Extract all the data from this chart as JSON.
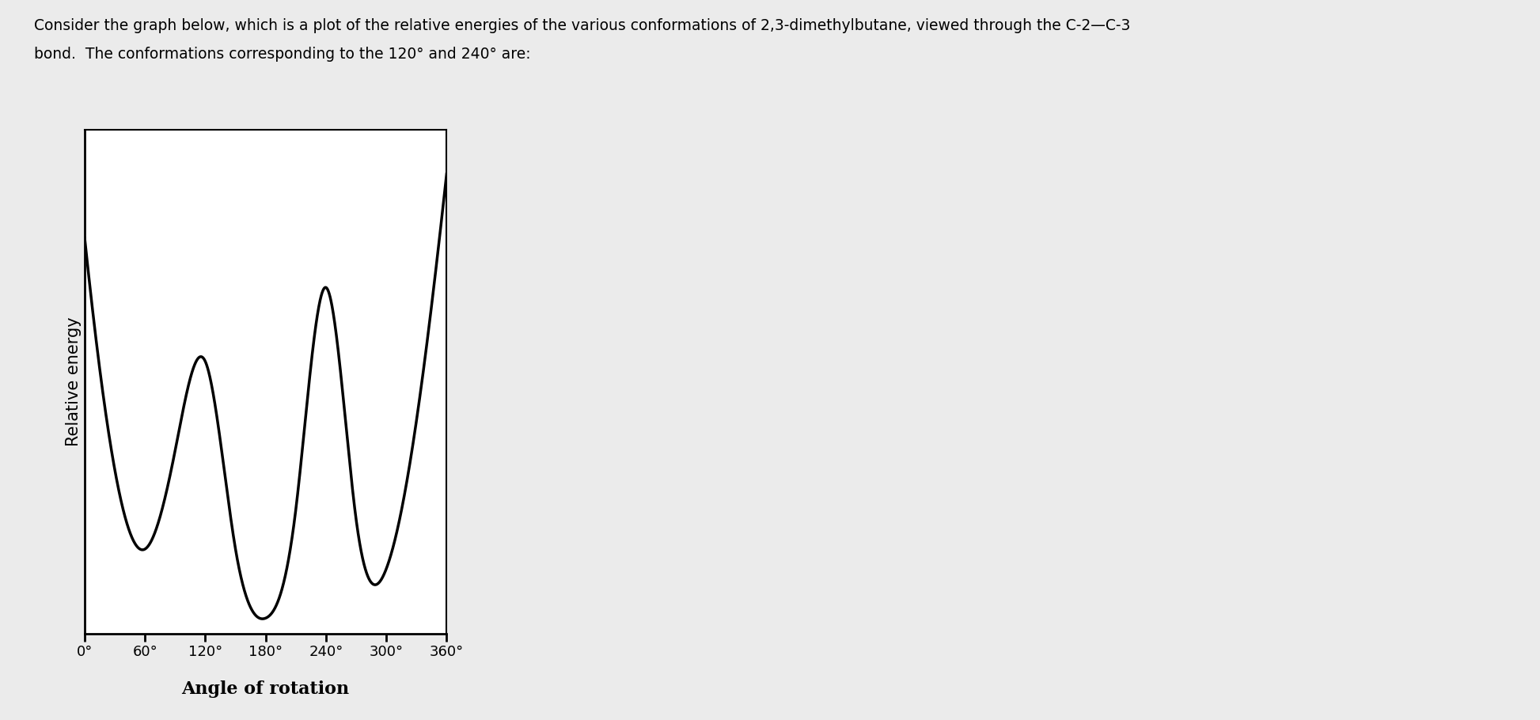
{
  "title_line1": "Consider the graph below, which is a plot of the relative energies of the various conformations of 2,3-dimethylbutane, viewed through the C-2—C-3",
  "title_line2": "bond.  The conformations corresponding to the 120° and 240° are:",
  "ylabel": "Relative energy",
  "xlabel": "Angle of rotation",
  "xtick_labels": [
    "0°",
    "60°",
    "120°",
    "180°",
    "240°",
    "300°",
    "360°"
  ],
  "xtick_values": [
    0,
    60,
    120,
    180,
    240,
    300,
    360
  ],
  "background_color": "#ebebeb",
  "plot_bg_color": "#ffffff",
  "line_color": "#000000",
  "line_width": 2.5,
  "title_fontsize": 13.5,
  "label_fontsize": 15,
  "tick_fontsize": 13,
  "fig_width": 19.46,
  "fig_height": 9.1,
  "energy_points_x": [
    0,
    30,
    60,
    90,
    120,
    150,
    180,
    210,
    240,
    270,
    300,
    330,
    360
  ],
  "energy_points_y": [
    0.85,
    0.38,
    0.22,
    0.42,
    0.6,
    0.22,
    0.08,
    0.3,
    0.75,
    0.28,
    0.18,
    0.48,
    0.98
  ]
}
